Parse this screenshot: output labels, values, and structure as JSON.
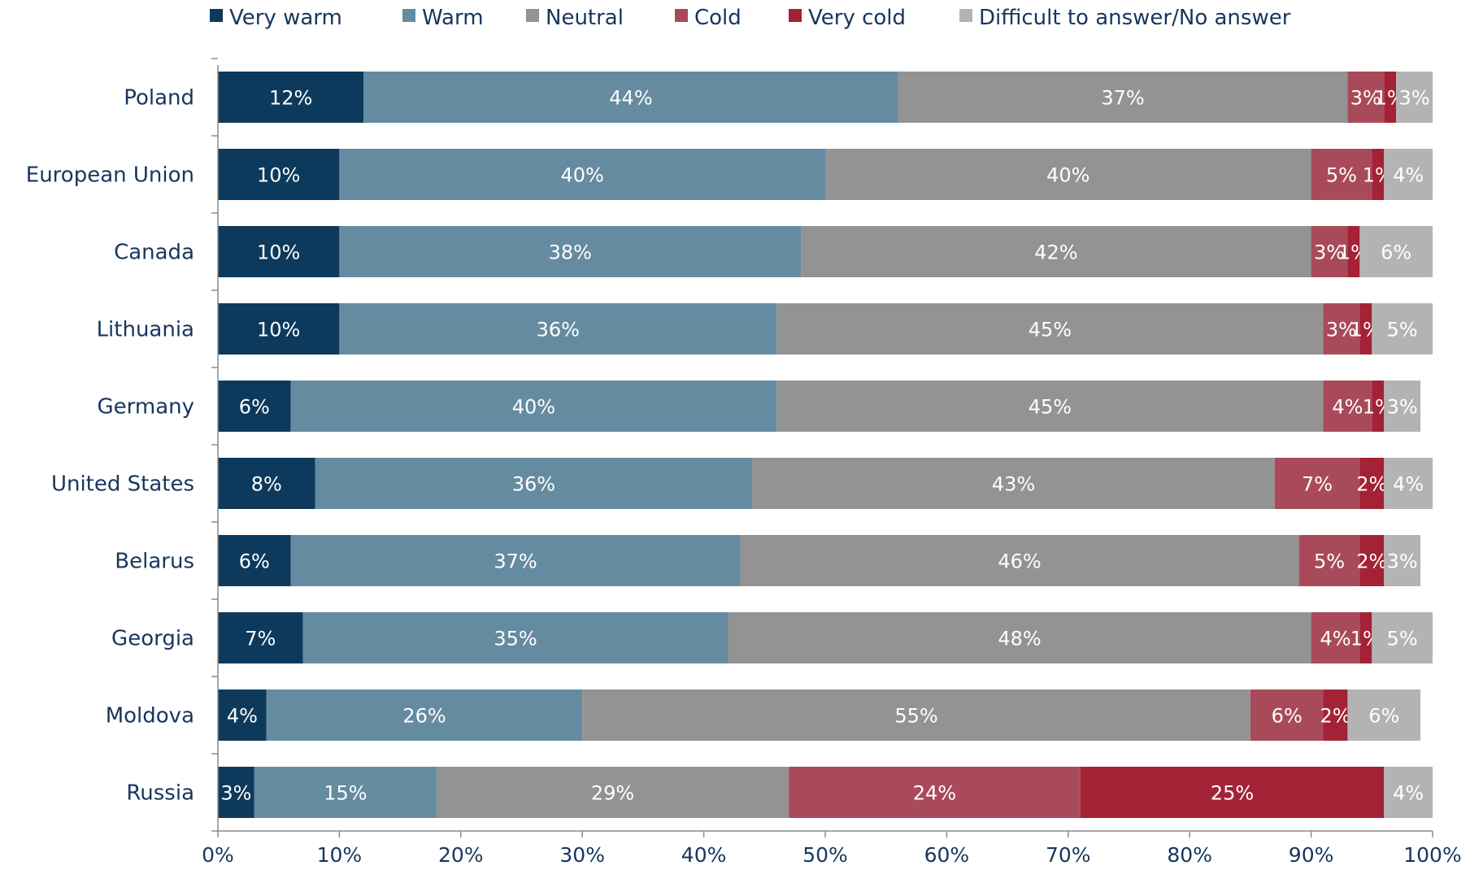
{
  "chart_data": {
    "type": "bar",
    "orientation": "horizontal",
    "stacked": true,
    "categories": [
      "Poland",
      "European Union",
      "Canada",
      "Lithuania",
      "Germany",
      "United States",
      "Belarus",
      "Georgia",
      "Moldova",
      "Russia"
    ],
    "series": [
      {
        "name": "Very warm",
        "color": "#0D3A5C",
        "values": [
          12,
          10,
          10,
          10,
          6,
          8,
          6,
          7,
          4,
          3
        ]
      },
      {
        "name": "Warm",
        "color": "#658BA1",
        "values": [
          44,
          40,
          38,
          36,
          40,
          36,
          37,
          35,
          26,
          15
        ]
      },
      {
        "name": "Neutral",
        "color": "#939393",
        "values": [
          37,
          40,
          42,
          45,
          45,
          43,
          46,
          48,
          55,
          29
        ]
      },
      {
        "name": "Cold",
        "color": "#A94A5A",
        "values": [
          3,
          5,
          3,
          3,
          4,
          7,
          5,
          4,
          6,
          24
        ]
      },
      {
        "name": "Very cold",
        "color": "#A32235",
        "values": [
          1,
          1,
          1,
          1,
          1,
          2,
          2,
          1,
          2,
          25
        ]
      },
      {
        "name": "Difficult to answer/No answer",
        "color": "#B3B3B3",
        "values": [
          3,
          4,
          6,
          5,
          3,
          4,
          3,
          5,
          6,
          4
        ]
      }
    ],
    "value_suffix": "%",
    "xlim": [
      0,
      100
    ],
    "xticks": [
      "0%",
      "10%",
      "20%",
      "30%",
      "40%",
      "50%",
      "60%",
      "70%",
      "80%",
      "90%",
      "100%"
    ],
    "legend": "top",
    "grid": false,
    "title": "",
    "xlabel": "",
    "ylabel": ""
  }
}
